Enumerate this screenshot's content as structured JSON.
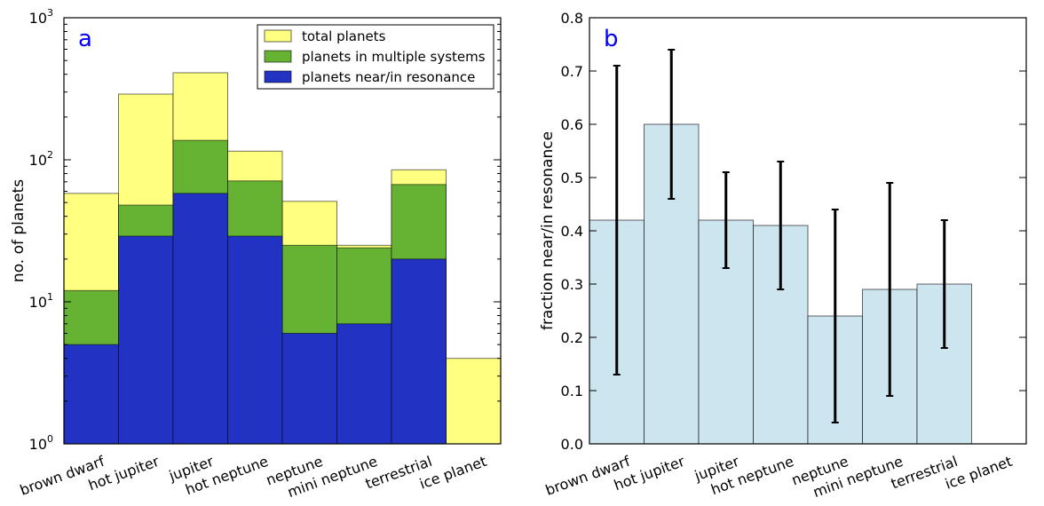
{
  "chart_data": [
    {
      "panel_label": "a",
      "type": "bar",
      "y_scale": "log",
      "ylabel": "no. of planets",
      "ylim": [
        1,
        1000
      ],
      "yticks": [
        {
          "value": 1,
          "base": "10",
          "exp": "0"
        },
        {
          "value": 10,
          "base": "10",
          "exp": "1"
        },
        {
          "value": 100,
          "base": "10",
          "exp": "2"
        },
        {
          "value": 1000,
          "base": "10",
          "exp": "3"
        }
      ],
      "categories": [
        "brown dwarf",
        "hot jupiter",
        "jupiter",
        "hot neptune",
        "neptune",
        "mini neptune",
        "terrestrial",
        "ice planet"
      ],
      "series": [
        {
          "name": "total planets",
          "color": "#ffff80",
          "values": [
            58,
            290,
            410,
            115,
            51,
            25,
            85,
            4
          ]
        },
        {
          "name": "planets in multiple systems",
          "color": "#66b333",
          "values": [
            12,
            48,
            137,
            71,
            25,
            24,
            67,
            0
          ]
        },
        {
          "name": "planets near/in resonance",
          "color": "#2233c4",
          "values": [
            5,
            29,
            58,
            29,
            6,
            7,
            20,
            0
          ]
        }
      ],
      "legend_position": "top-right"
    },
    {
      "panel_label": "b",
      "type": "bar",
      "ylabel": "fraction near/in resonance",
      "ylim": [
        0.0,
        0.8
      ],
      "yticks": [
        "0.0",
        "0.1",
        "0.2",
        "0.3",
        "0.4",
        "0.5",
        "0.6",
        "0.7",
        "0.8"
      ],
      "categories": [
        "brown dwarf",
        "hot jupiter",
        "jupiter",
        "hot neptune",
        "neptune",
        "mini neptune",
        "terrestrial",
        "ice planet"
      ],
      "bar_color": "#cde5ee",
      "values": [
        0.42,
        0.6,
        0.42,
        0.41,
        0.24,
        0.29,
        0.3,
        null
      ],
      "error_low": [
        0.13,
        0.46,
        0.33,
        0.29,
        0.04,
        0.09,
        0.18,
        null
      ],
      "error_high": [
        0.71,
        0.74,
        0.51,
        0.53,
        0.44,
        0.49,
        0.42,
        null
      ]
    }
  ]
}
